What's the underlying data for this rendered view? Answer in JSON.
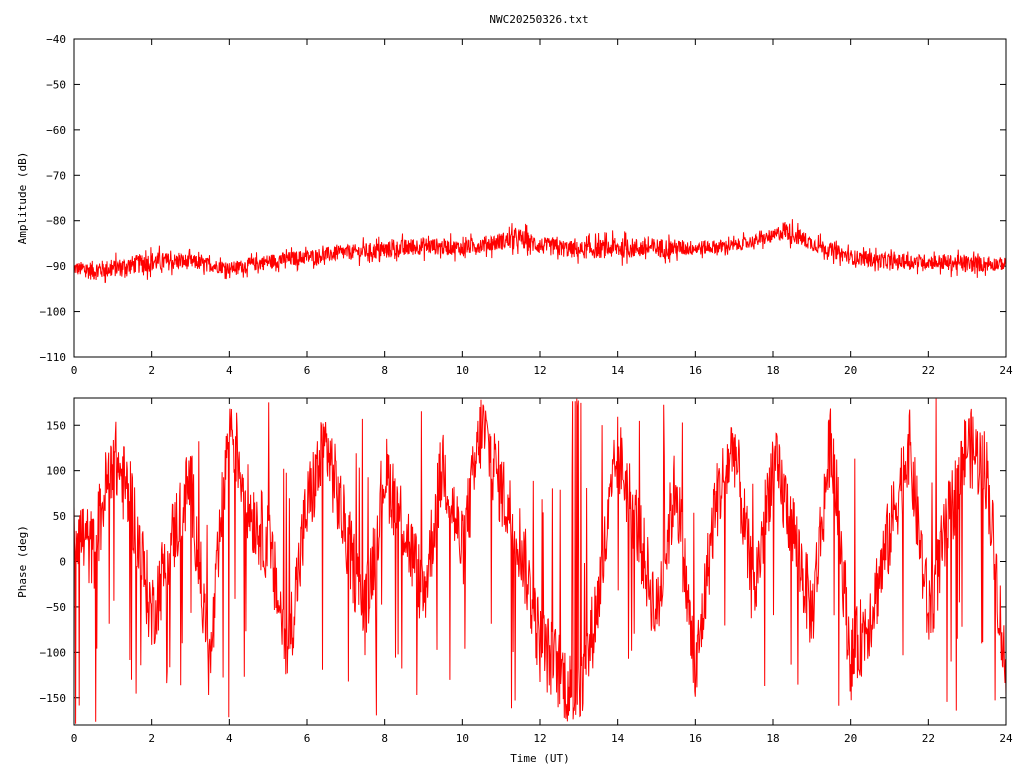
{
  "title": "NWC20250326.txt",
  "colors": {
    "trace": "#ff0000",
    "axis": "#000000",
    "background": "#ffffff"
  },
  "chart_data": [
    {
      "type": "line",
      "name": "amplitude",
      "ylabel": "Amplitude (dB)",
      "xlabel": "",
      "xlim": [
        0,
        24
      ],
      "ylim": [
        -110,
        -40
      ],
      "xticks": [
        0,
        2,
        4,
        6,
        8,
        10,
        12,
        14,
        16,
        18,
        20,
        22,
        24
      ],
      "yticks": [
        -40,
        -50,
        -60,
        -70,
        -80,
        -90,
        -100,
        -110
      ],
      "grid": false,
      "series": [
        {
          "color": "#ff0000",
          "envelope_x": [
            0,
            0.5,
            1,
            2,
            3,
            4,
            5,
            6,
            7,
            8,
            9,
            10,
            11,
            11.5,
            12,
            13,
            14,
            15,
            16,
            17,
            18,
            18.3,
            19,
            20,
            21,
            22,
            23,
            24
          ],
          "envelope_min": [
            -93,
            -95,
            -94,
            -93,
            -92,
            -93,
            -92,
            -91,
            -90,
            -90,
            -89,
            -89,
            -88,
            -88,
            -89,
            -90,
            -90,
            -90,
            -89,
            -88,
            -86,
            -86,
            -88,
            -91,
            -92,
            -92,
            -93,
            -92
          ],
          "envelope_max": [
            -88,
            -87,
            -87,
            -85,
            -86,
            -88,
            -86,
            -85,
            -84,
            -83,
            -82,
            -83,
            -81,
            -80,
            -82,
            -83,
            -82,
            -82,
            -83,
            -83,
            -81,
            -78,
            -82,
            -85,
            -86,
            -86,
            -86,
            -87
          ]
        }
      ]
    },
    {
      "type": "line",
      "name": "phase",
      "ylabel": "Phase (deg)",
      "xlabel": "Time (UT)",
      "xlim": [
        0,
        24
      ],
      "ylim": [
        -180,
        180
      ],
      "xticks": [
        0,
        2,
        4,
        6,
        8,
        10,
        12,
        14,
        16,
        18,
        20,
        22,
        24
      ],
      "yticks": [
        150,
        100,
        50,
        0,
        -50,
        -100,
        -150
      ],
      "grid": false,
      "series": [
        {
          "color": "#ff0000",
          "wrapped": true,
          "knots_x": [
            0,
            0.5,
            1,
            1.5,
            2,
            2.5,
            3,
            3.5,
            4,
            4.5,
            5,
            5.5,
            6,
            6.5,
            7,
            7.5,
            8,
            8.5,
            9,
            9.5,
            10,
            10.5,
            11,
            11.5,
            12,
            12.5,
            13,
            13.5,
            14,
            14.5,
            15,
            15.5,
            16,
            16.5,
            17,
            17.5,
            18,
            18.5,
            19,
            19.5,
            20,
            20.5,
            21,
            21.5,
            22,
            22.5,
            23,
            23.5,
            24
          ],
          "knots_y": [
            40,
            10,
            120,
            60,
            -60,
            20,
            90,
            -120,
            160,
            60,
            20,
            -100,
            60,
            130,
            30,
            -60,
            100,
            40,
            -40,
            110,
            10,
            150,
            80,
            20,
            -90,
            -120,
            -160,
            -40,
            120,
            40,
            -60,
            90,
            -130,
            60,
            130,
            -40,
            110,
            40,
            -60,
            140,
            -110,
            -60,
            30,
            130,
            -60,
            40,
            130,
            100,
            -130
          ]
        }
      ]
    }
  ]
}
